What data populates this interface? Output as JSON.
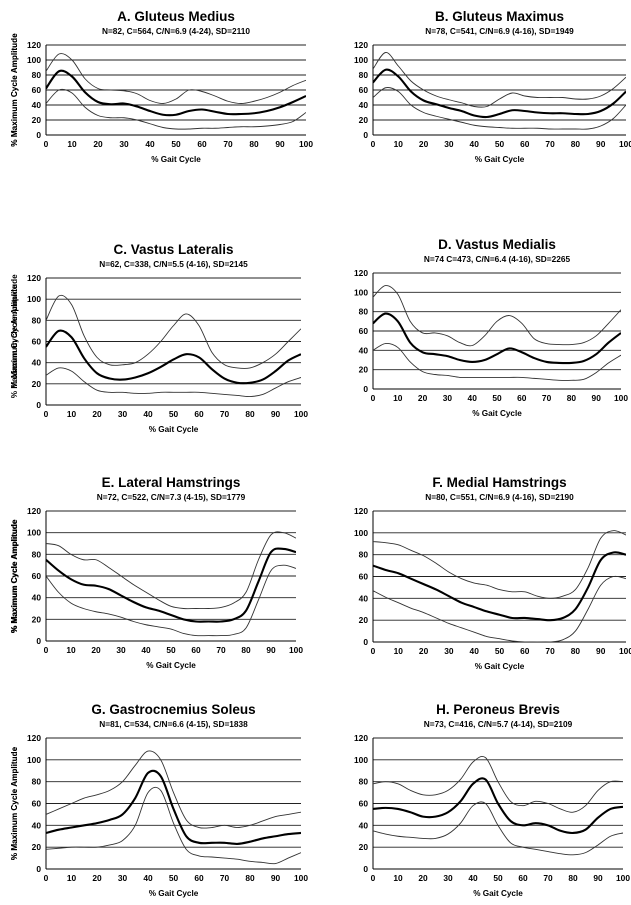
{
  "chart_data": [
    {
      "type": "line",
      "title": "A. Gluteus Medius",
      "subtitle": "N=82, C=564, C/N=6.9 (4-24), SD=2110",
      "xlabel": "% Gait Cycle",
      "ylabel": "% Maximum Cycle Amplitude",
      "xlim": [
        0,
        100
      ],
      "ylim": [
        0,
        120
      ],
      "xticks": [
        "0",
        "10",
        "20",
        "30",
        "40",
        "50",
        "60",
        "70",
        "80",
        "90",
        "100"
      ],
      "yticks": [
        "0",
        "20",
        "40",
        "60",
        "80",
        "100",
        "120"
      ],
      "grid": "horizontal",
      "x": [
        0,
        5,
        10,
        15,
        20,
        25,
        30,
        35,
        40,
        45,
        50,
        55,
        60,
        65,
        70,
        75,
        80,
        85,
        90,
        95,
        100
      ],
      "series": [
        {
          "values": [
            85,
            108,
            100,
            75,
            62,
            60,
            59,
            55,
            46,
            42,
            48,
            60,
            58,
            52,
            45,
            42,
            45,
            50,
            57,
            66,
            73
          ]
        },
        {
          "values": [
            62,
            85,
            78,
            57,
            44,
            41,
            42,
            38,
            32,
            27,
            27,
            32,
            34,
            31,
            28,
            28,
            29,
            32,
            37,
            44,
            52
          ]
        },
        {
          "values": [
            42,
            60,
            56,
            37,
            26,
            23,
            23,
            20,
            15,
            10,
            8,
            8,
            9,
            9,
            10,
            11,
            11,
            12,
            14,
            18,
            30
          ]
        }
      ]
    },
    {
      "type": "line",
      "title": "B. Gluteus Maximus",
      "subtitle": "N=78, C=541, C/N=6.9 (4-16), SD=1949",
      "xlabel": "% Gait Cycle",
      "ylabel": "% Maximum Cycle Amplitude",
      "xlim": [
        0,
        100
      ],
      "ylim": [
        0,
        120
      ],
      "xticks": [
        "0",
        "10",
        "20",
        "30",
        "40",
        "50",
        "60",
        "70",
        "80",
        "90",
        "100"
      ],
      "yticks": [
        "0",
        "20",
        "40",
        "60",
        "80",
        "100",
        "120"
      ],
      "grid": "horizontal",
      "x": [
        0,
        5,
        10,
        15,
        20,
        25,
        30,
        35,
        40,
        45,
        50,
        55,
        60,
        65,
        70,
        75,
        80,
        85,
        90,
        95,
        100
      ],
      "series": [
        {
          "values": [
            88,
            110,
            92,
            72,
            60,
            52,
            47,
            43,
            38,
            38,
            48,
            56,
            52,
            50,
            50,
            50,
            48,
            48,
            52,
            62,
            77
          ]
        },
        {
          "values": [
            70,
            87,
            78,
            58,
            46,
            41,
            36,
            32,
            26,
            24,
            28,
            33,
            32,
            30,
            29,
            29,
            28,
            28,
            32,
            42,
            58
          ]
        },
        {
          "values": [
            50,
            63,
            58,
            40,
            30,
            25,
            21,
            17,
            13,
            11,
            10,
            9,
            9,
            9,
            8,
            8,
            8,
            8,
            12,
            22,
            40
          ]
        }
      ]
    },
    {
      "type": "line",
      "title": "C. Vastus Lateralis",
      "subtitle": "N=62, C=338, C/N=5.5 (4-16), SD=2145",
      "xlabel": "% Gait Cycle",
      "ylabel": "% Maximum Cycle Amplitude",
      "xlim": [
        0,
        100
      ],
      "ylim": [
        0,
        120
      ],
      "xticks": [
        "0",
        "10",
        "20",
        "30",
        "40",
        "50",
        "60",
        "70",
        "80",
        "90",
        "100"
      ],
      "yticks": [
        "0",
        "20",
        "40",
        "60",
        "80",
        "100",
        "120"
      ],
      "grid": "horizontal",
      "x": [
        0,
        5,
        10,
        15,
        20,
        25,
        30,
        35,
        40,
        45,
        50,
        55,
        60,
        65,
        70,
        75,
        80,
        85,
        90,
        95,
        100
      ],
      "series": [
        {
          "values": [
            80,
            103,
            95,
            65,
            45,
            38,
            38,
            40,
            48,
            60,
            75,
            86,
            75,
            50,
            38,
            35,
            35,
            40,
            48,
            60,
            72
          ]
        },
        {
          "values": [
            55,
            70,
            64,
            44,
            30,
            25,
            24,
            26,
            30,
            36,
            43,
            48,
            45,
            34,
            25,
            21,
            21,
            24,
            32,
            42,
            48
          ]
        },
        {
          "values": [
            28,
            35,
            32,
            22,
            14,
            12,
            12,
            11,
            11,
            12,
            12,
            12,
            12,
            11,
            10,
            9,
            8,
            10,
            16,
            22,
            26
          ]
        }
      ]
    },
    {
      "type": "line",
      "title": "D. Vastus Medialis",
      "subtitle": "N=74 C=473, C/N=6.4 (4-16), SD=2265",
      "xlabel": "% Gait Cycle",
      "ylabel": "% Maximum Cycle Amplitude",
      "xlim": [
        0,
        100
      ],
      "ylim": [
        0,
        120
      ],
      "xticks": [
        "0",
        "10",
        "20",
        "30",
        "40",
        "50",
        "60",
        "70",
        "80",
        "90",
        "100"
      ],
      "yticks": [
        "0",
        "20",
        "40",
        "60",
        "80",
        "100",
        "120"
      ],
      "grid": "horizontal",
      "x": [
        0,
        5,
        10,
        15,
        20,
        25,
        30,
        35,
        40,
        45,
        50,
        55,
        60,
        65,
        70,
        75,
        80,
        85,
        90,
        95,
        100
      ],
      "series": [
        {
          "values": [
            95,
            107,
            98,
            70,
            58,
            58,
            55,
            48,
            45,
            55,
            70,
            76,
            68,
            52,
            47,
            46,
            46,
            48,
            55,
            68,
            82
          ]
        },
        {
          "values": [
            68,
            78,
            70,
            48,
            38,
            36,
            34,
            30,
            28,
            30,
            36,
            42,
            38,
            32,
            28,
            27,
            27,
            29,
            36,
            48,
            58
          ]
        },
        {
          "values": [
            40,
            47,
            43,
            28,
            18,
            15,
            14,
            12,
            12,
            12,
            12,
            12,
            12,
            11,
            10,
            9,
            9,
            10,
            17,
            27,
            35
          ]
        }
      ]
    },
    {
      "type": "line",
      "title": "E. Lateral Hamstrings",
      "subtitle": "N=72, C=522, C/N=7.3 (4-15), SD=1779",
      "xlabel": "% Gait Cycle",
      "ylabel": "% Maximum Cycle Amplitude",
      "xlim": [
        0,
        100
      ],
      "ylim": [
        0,
        120
      ],
      "xticks": [
        "0",
        "10",
        "20",
        "30",
        "40",
        "50",
        "60",
        "70",
        "80",
        "90",
        "100"
      ],
      "yticks": [
        "0",
        "20",
        "40",
        "60",
        "80",
        "100",
        "120"
      ],
      "grid": "horizontal",
      "x": [
        0,
        5,
        10,
        15,
        20,
        25,
        30,
        35,
        40,
        45,
        50,
        55,
        60,
        65,
        70,
        75,
        80,
        85,
        90,
        95,
        100
      ],
      "series": [
        {
          "values": [
            90,
            88,
            80,
            75,
            75,
            68,
            60,
            52,
            45,
            38,
            32,
            30,
            30,
            30,
            31,
            35,
            45,
            75,
            98,
            100,
            95
          ]
        },
        {
          "values": [
            75,
            65,
            57,
            52,
            51,
            48,
            42,
            36,
            31,
            28,
            24,
            20,
            18,
            18,
            18,
            20,
            28,
            55,
            82,
            85,
            82
          ]
        },
        {
          "values": [
            60,
            45,
            35,
            30,
            27,
            25,
            22,
            18,
            15,
            13,
            11,
            7,
            5,
            5,
            5,
            6,
            12,
            38,
            65,
            70,
            67
          ]
        }
      ]
    },
    {
      "type": "line",
      "title": "F. Medial Hamstrings",
      "subtitle": "N=80, C=551, C/N=6.9 (4-16), SD=2190",
      "xlabel": "% Gait Cycle",
      "ylabel": "% Maximum Cycle Amplitude",
      "xlim": [
        0,
        100
      ],
      "ylim": [
        0,
        120
      ],
      "xticks": [
        "0",
        "10",
        "20",
        "30",
        "40",
        "50",
        "60",
        "70",
        "80",
        "90",
        "100"
      ],
      "yticks": [
        "0",
        "20",
        "40",
        "60",
        "80",
        "100",
        "120"
      ],
      "grid": "horizontal",
      "x": [
        0,
        5,
        10,
        15,
        20,
        25,
        30,
        35,
        40,
        45,
        50,
        55,
        60,
        65,
        70,
        75,
        80,
        85,
        90,
        95,
        100
      ],
      "series": [
        {
          "values": [
            92,
            91,
            89,
            84,
            79,
            72,
            64,
            58,
            54,
            52,
            48,
            46,
            46,
            42,
            40,
            42,
            48,
            68,
            95,
            102,
            98
          ]
        },
        {
          "values": [
            70,
            66,
            63,
            58,
            53,
            48,
            42,
            36,
            32,
            28,
            25,
            22,
            22,
            21,
            20,
            22,
            30,
            50,
            75,
            82,
            80
          ]
        },
        {
          "values": [
            47,
            41,
            36,
            31,
            27,
            22,
            17,
            13,
            9,
            5,
            3,
            1,
            0,
            0,
            0,
            2,
            10,
            30,
            52,
            60,
            58
          ]
        }
      ]
    },
    {
      "type": "line",
      "title": "G. Gastrocnemius Soleus",
      "subtitle": "N=81, C=534, C/N=6.6 (4-15), SD=1838",
      "xlabel": "% Gait Cycle",
      "ylabel": "% Maximum Cycle Amplitude",
      "xlim": [
        0,
        100
      ],
      "ylim": [
        0,
        120
      ],
      "xticks": [
        "0",
        "10",
        "20",
        "30",
        "40",
        "50",
        "60",
        "70",
        "80",
        "90",
        "100"
      ],
      "yticks": [
        "0",
        "20",
        "40",
        "60",
        "80",
        "100",
        "120"
      ],
      "grid": "horizontal",
      "x": [
        0,
        5,
        10,
        15,
        20,
        25,
        30,
        35,
        40,
        45,
        50,
        55,
        60,
        65,
        70,
        75,
        80,
        85,
        90,
        95,
        100
      ],
      "series": [
        {
          "values": [
            50,
            55,
            60,
            65,
            68,
            72,
            80,
            95,
            108,
            100,
            70,
            45,
            38,
            38,
            40,
            38,
            40,
            44,
            48,
            50,
            52
          ]
        },
        {
          "values": [
            33,
            36,
            38,
            40,
            42,
            45,
            50,
            65,
            88,
            85,
            55,
            30,
            24,
            24,
            24,
            23,
            25,
            28,
            30,
            32,
            33
          ]
        },
        {
          "values": [
            18,
            19,
            20,
            20,
            20,
            22,
            26,
            40,
            70,
            72,
            42,
            18,
            12,
            11,
            10,
            9,
            7,
            6,
            5,
            10,
            15
          ]
        }
      ]
    },
    {
      "type": "line",
      "title": "H. Peroneus Brevis",
      "subtitle": "N=73, C=416, C/N=5.7 (4-14), SD=2109",
      "xlabel": "% Gait Cycle",
      "ylabel": "% Maximum Cycle Amplitude",
      "xlim": [
        0,
        100
      ],
      "ylim": [
        0,
        120
      ],
      "xticks": [
        "0",
        "10",
        "20",
        "30",
        "40",
        "50",
        "60",
        "70",
        "80",
        "90",
        "100"
      ],
      "yticks": [
        "0",
        "20",
        "40",
        "60",
        "80",
        "100",
        "120"
      ],
      "grid": "horizontal",
      "x": [
        0,
        5,
        10,
        15,
        20,
        25,
        30,
        35,
        40,
        45,
        50,
        55,
        60,
        65,
        70,
        75,
        80,
        85,
        90,
        95,
        100
      ],
      "series": [
        {
          "values": [
            78,
            80,
            78,
            72,
            68,
            68,
            72,
            82,
            98,
            102,
            80,
            62,
            58,
            62,
            60,
            55,
            52,
            58,
            72,
            80,
            80
          ]
        },
        {
          "values": [
            55,
            56,
            55,
            52,
            48,
            48,
            52,
            62,
            78,
            82,
            60,
            44,
            40,
            42,
            40,
            35,
            33,
            36,
            47,
            55,
            57
          ]
        },
        {
          "values": [
            35,
            32,
            30,
            29,
            28,
            28,
            32,
            42,
            58,
            60,
            40,
            24,
            20,
            18,
            16,
            14,
            13,
            15,
            22,
            30,
            33
          ]
        }
      ]
    }
  ]
}
